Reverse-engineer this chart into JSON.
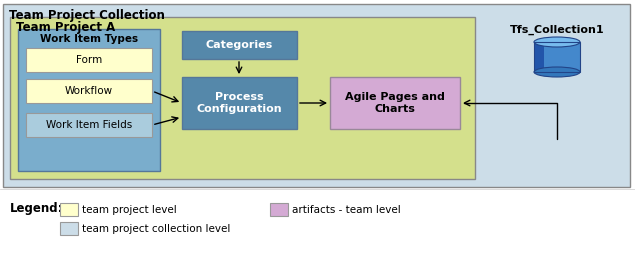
{
  "bg_outer": "#ccdde8",
  "bg_green": "#d4e08c",
  "bg_blue_inner": "#7aadcc",
  "color_yellow": "#ffffcc",
  "color_light_blue_box": "#aaccdd",
  "color_blue_box": "#5588aa",
  "color_purple": "#d4aad4",
  "title_outer": "Team Project Collection",
  "title_inner": "Team Project A",
  "wit_label": "Work Item Types",
  "form_label": "Form",
  "workflow_label": "Workflow",
  "wif_label": "Work Item Fields",
  "categories_label": "Categories",
  "process_label": "Process\nConfiguration",
  "agile_label": "Agile Pages and\nCharts",
  "tfs_label": "Tfs_Collection1",
  "legend_title": "Legend:",
  "legend1_label": "team project level",
  "legend2_label": "artifacts - team level",
  "legend3_label": "team project collection level"
}
